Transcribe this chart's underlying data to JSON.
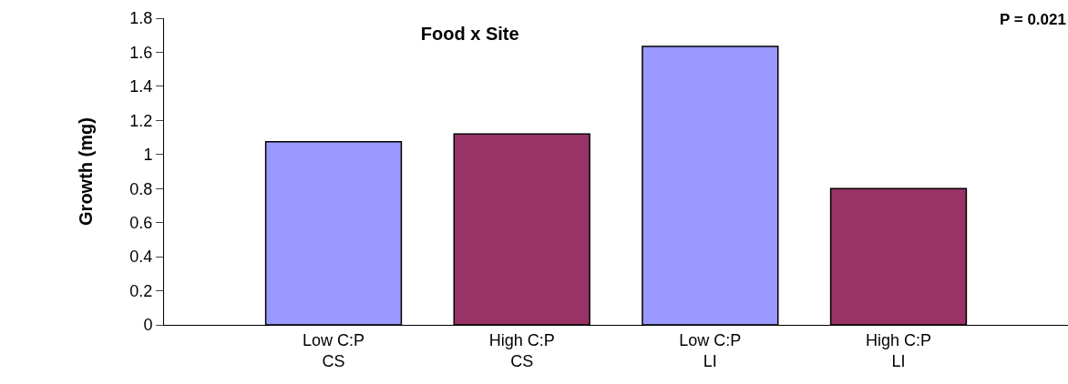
{
  "chart_data": {
    "type": "bar",
    "title": "Food x Site",
    "ylabel": "Growth (mg)",
    "annotations": [
      "P = 0.021"
    ],
    "categories": [
      "Low C:P\nCS",
      "High C:P\nCS",
      "Low C:P\nLI",
      "High C:P\nLI"
    ],
    "values": [
      1.075,
      1.12,
      1.635,
      0.8
    ],
    "colors": [
      "#9999ff",
      "#993366",
      "#9999ff",
      "#993366"
    ],
    "ylim": [
      0,
      1.8
    ],
    "yticks": [
      0,
      0.2,
      0.4,
      0.6,
      0.8,
      1,
      1.2,
      1.4,
      1.6,
      1.8
    ]
  }
}
